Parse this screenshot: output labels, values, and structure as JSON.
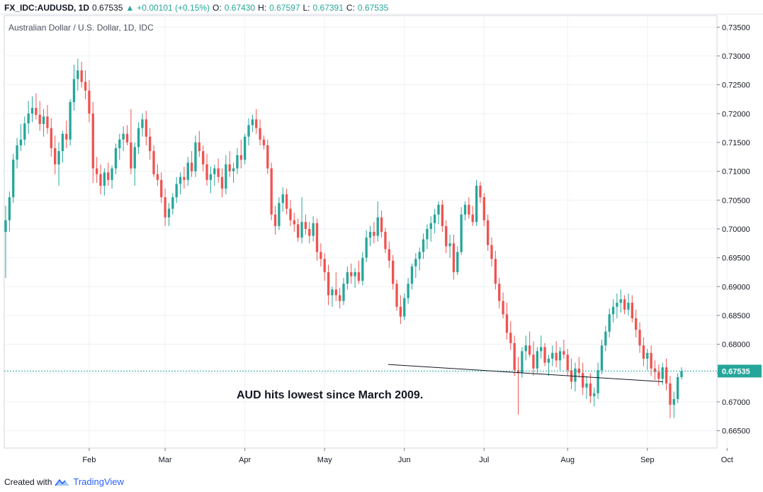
{
  "header": {
    "symbol": "FX_IDC:AUDUSD, 1D",
    "price": "0.67535",
    "change_arrow": "▲",
    "change": "+0.00101 (+0.15%)",
    "o_label": "O:",
    "o_value": "0.67430",
    "h_label": "H:",
    "h_value": "0.67597",
    "l_label": "L:",
    "l_value": "0.67391",
    "c_label": "C:",
    "c_value": "0.67535"
  },
  "footer": {
    "created_with": "Created with",
    "brand": "TradingView",
    "logo_icon": "tradingview-logo-icon"
  },
  "colors": {
    "up": "#26a69a",
    "down": "#ef5350",
    "last_price": "#26a69a",
    "grid": "#eef1f5"
  },
  "chart_data": {
    "type": "candlestick",
    "title": "Australian Dollar / U.S. Dollar, 1D, IDC",
    "ylim": [
      0.662,
      0.737
    ],
    "y_ticks": [
      "0.73500",
      "0.73000",
      "0.72500",
      "0.72000",
      "0.71500",
      "0.71000",
      "0.70500",
      "0.70000",
      "0.69500",
      "0.69000",
      "0.68500",
      "0.68000",
      "0.67500",
      "0.67000",
      "0.66500"
    ],
    "x_ticks": [
      "Feb",
      "Mar",
      "Apr",
      "May",
      "Jun",
      "Jul",
      "Aug",
      "Sep",
      "Oct"
    ],
    "last_price": 0.67535,
    "last_price_label": "0.67535",
    "annotation": "AUD hits lowest since March 2009.",
    "annotation_line": [
      [
        0.6718,
        0.6765
      ],
      [
        0.6718,
        0.6735
      ]
    ],
    "candles": [
      [
        0.6995,
        0.704,
        0.6915,
        0.7015
      ],
      [
        0.7015,
        0.7065,
        0.6995,
        0.7055
      ],
      [
        0.7055,
        0.713,
        0.7045,
        0.712
      ],
      [
        0.712,
        0.7158,
        0.7105,
        0.7145
      ],
      [
        0.7145,
        0.7182,
        0.7135,
        0.7155
      ],
      [
        0.7155,
        0.7195,
        0.7145,
        0.7183
      ],
      [
        0.7183,
        0.7222,
        0.7165,
        0.72
      ],
      [
        0.72,
        0.723,
        0.7185,
        0.721
      ],
      [
        0.721,
        0.7235,
        0.719,
        0.7198
      ],
      [
        0.7198,
        0.7222,
        0.717,
        0.7182
      ],
      [
        0.7182,
        0.7208,
        0.716,
        0.7195
      ],
      [
        0.7195,
        0.7215,
        0.7165,
        0.7175
      ],
      [
        0.7175,
        0.7192,
        0.7125,
        0.714
      ],
      [
        0.714,
        0.7162,
        0.7095,
        0.7112
      ],
      [
        0.7112,
        0.715,
        0.7075,
        0.7135
      ],
      [
        0.7135,
        0.717,
        0.7115,
        0.7165
      ],
      [
        0.7165,
        0.7188,
        0.714,
        0.7155
      ],
      [
        0.7155,
        0.7225,
        0.7145,
        0.722
      ],
      [
        0.722,
        0.7285,
        0.7205,
        0.726
      ],
      [
        0.726,
        0.7295,
        0.724,
        0.7275
      ],
      [
        0.7275,
        0.729,
        0.7245,
        0.7255
      ],
      [
        0.7255,
        0.7275,
        0.7225,
        0.724
      ],
      [
        0.724,
        0.7258,
        0.7185,
        0.72
      ],
      [
        0.72,
        0.722,
        0.708,
        0.7105
      ],
      [
        0.7105,
        0.7125,
        0.708,
        0.7095
      ],
      [
        0.7095,
        0.7112,
        0.706,
        0.7075
      ],
      [
        0.7075,
        0.7105,
        0.7058,
        0.7098
      ],
      [
        0.7098,
        0.7115,
        0.7075,
        0.7085
      ],
      [
        0.7085,
        0.711,
        0.707,
        0.7105
      ],
      [
        0.7105,
        0.7148,
        0.7095,
        0.714
      ],
      [
        0.714,
        0.7165,
        0.712,
        0.7155
      ],
      [
        0.7155,
        0.7178,
        0.7135,
        0.7165
      ],
      [
        0.7165,
        0.718,
        0.7145,
        0.715
      ],
      [
        0.715,
        0.7208,
        0.7095,
        0.7105
      ],
      [
        0.7105,
        0.715,
        0.7075,
        0.7142
      ],
      [
        0.7142,
        0.7185,
        0.713,
        0.7175
      ],
      [
        0.7175,
        0.72,
        0.716,
        0.719
      ],
      [
        0.719,
        0.7205,
        0.7145,
        0.716
      ],
      [
        0.716,
        0.7175,
        0.712,
        0.7135
      ],
      [
        0.7135,
        0.7145,
        0.709,
        0.7095
      ],
      [
        0.7095,
        0.7112,
        0.7075,
        0.7085
      ],
      [
        0.7085,
        0.7098,
        0.7045,
        0.7055
      ],
      [
        0.7055,
        0.707,
        0.7005,
        0.702
      ],
      [
        0.702,
        0.7045,
        0.7005,
        0.7035
      ],
      [
        0.7035,
        0.7062,
        0.7025,
        0.7055
      ],
      [
        0.7055,
        0.709,
        0.7045,
        0.7078
      ],
      [
        0.7078,
        0.7098,
        0.706,
        0.709
      ],
      [
        0.709,
        0.7108,
        0.707,
        0.7085
      ],
      [
        0.7085,
        0.7125,
        0.7075,
        0.7115
      ],
      [
        0.7115,
        0.7135,
        0.709,
        0.71
      ],
      [
        0.71,
        0.7162,
        0.709,
        0.715
      ],
      [
        0.715,
        0.717,
        0.7125,
        0.7135
      ],
      [
        0.7135,
        0.7145,
        0.71,
        0.7112
      ],
      [
        0.7112,
        0.713,
        0.7075,
        0.7085
      ],
      [
        0.7085,
        0.7108,
        0.7062,
        0.7095
      ],
      [
        0.7095,
        0.7112,
        0.7075,
        0.7105
      ],
      [
        0.7105,
        0.7122,
        0.708,
        0.709
      ],
      [
        0.709,
        0.7105,
        0.7055,
        0.707
      ],
      [
        0.707,
        0.7128,
        0.706,
        0.7112
      ],
      [
        0.7112,
        0.7135,
        0.709,
        0.71
      ],
      [
        0.71,
        0.7115,
        0.708,
        0.7105
      ],
      [
        0.7105,
        0.714,
        0.7095,
        0.7128
      ],
      [
        0.7128,
        0.7155,
        0.7105,
        0.712
      ],
      [
        0.712,
        0.7165,
        0.7112,
        0.716
      ],
      [
        0.716,
        0.7192,
        0.7145,
        0.718
      ],
      [
        0.718,
        0.7198,
        0.7168,
        0.719
      ],
      [
        0.719,
        0.7208,
        0.7165,
        0.7175
      ],
      [
        0.7175,
        0.719,
        0.7145,
        0.7155
      ],
      [
        0.7155,
        0.7162,
        0.7138,
        0.7145
      ],
      [
        0.7145,
        0.7155,
        0.7095,
        0.7105
      ],
      [
        0.7105,
        0.7115,
        0.7015,
        0.7025
      ],
      [
        0.7025,
        0.704,
        0.699,
        0.7005
      ],
      [
        0.7005,
        0.7055,
        0.6998,
        0.7045
      ],
      [
        0.7045,
        0.7072,
        0.703,
        0.706
      ],
      [
        0.706,
        0.707,
        0.7025,
        0.7035
      ],
      [
        0.7035,
        0.705,
        0.7005,
        0.7015
      ],
      [
        0.7015,
        0.7028,
        0.6995,
        0.7008
      ],
      [
        0.7008,
        0.7018,
        0.6978,
        0.6985
      ],
      [
        0.6985,
        0.7055,
        0.6975,
        0.7012
      ],
      [
        0.7012,
        0.7025,
        0.699,
        0.7
      ],
      [
        0.7,
        0.7012,
        0.6975,
        0.6988
      ],
      [
        0.6988,
        0.7022,
        0.6978,
        0.701
      ],
      [
        0.701,
        0.7018,
        0.6945,
        0.696
      ],
      [
        0.696,
        0.6975,
        0.6935,
        0.6948
      ],
      [
        0.6948,
        0.6958,
        0.691,
        0.6925
      ],
      [
        0.6925,
        0.6938,
        0.6868,
        0.6885
      ],
      [
        0.6885,
        0.69,
        0.6865,
        0.6895
      ],
      [
        0.6895,
        0.6925,
        0.6875,
        0.6885
      ],
      [
        0.6885,
        0.6898,
        0.6862,
        0.6875
      ],
      [
        0.6875,
        0.6915,
        0.6868,
        0.6905
      ],
      [
        0.6905,
        0.6935,
        0.6895,
        0.6925
      ],
      [
        0.6925,
        0.694,
        0.6905,
        0.6918
      ],
      [
        0.6918,
        0.6932,
        0.6898,
        0.6925
      ],
      [
        0.6925,
        0.6945,
        0.6905,
        0.691
      ],
      [
        0.691,
        0.696,
        0.6902,
        0.695
      ],
      [
        0.695,
        0.6998,
        0.6942,
        0.6985
      ],
      [
        0.6985,
        0.7005,
        0.697,
        0.6995
      ],
      [
        0.6995,
        0.7012,
        0.6975,
        0.6988
      ],
      [
        0.6988,
        0.7048,
        0.6978,
        0.702
      ],
      [
        0.702,
        0.7032,
        0.6985,
        0.6995
      ],
      [
        0.6995,
        0.7002,
        0.6958,
        0.6965
      ],
      [
        0.6965,
        0.6978,
        0.6932,
        0.6945
      ],
      [
        0.6945,
        0.6955,
        0.6895,
        0.6905
      ],
      [
        0.6905,
        0.6912,
        0.6858,
        0.6865
      ],
      [
        0.6865,
        0.6885,
        0.6835,
        0.6848
      ],
      [
        0.6848,
        0.6888,
        0.6842,
        0.688
      ],
      [
        0.688,
        0.6915,
        0.687,
        0.6905
      ],
      [
        0.6905,
        0.694,
        0.6895,
        0.6935
      ],
      [
        0.6935,
        0.6958,
        0.6915,
        0.6948
      ],
      [
        0.6948,
        0.6968,
        0.6928,
        0.696
      ],
      [
        0.696,
        0.6992,
        0.6948,
        0.6982
      ],
      [
        0.6982,
        0.7008,
        0.6965,
        0.7
      ],
      [
        0.7,
        0.7022,
        0.6978,
        0.701
      ],
      [
        0.701,
        0.7035,
        0.6992,
        0.7025
      ],
      [
        0.7025,
        0.7048,
        0.7008,
        0.7042
      ],
      [
        0.7042,
        0.705,
        0.6995,
        0.7005
      ],
      [
        0.7005,
        0.7015,
        0.6958,
        0.697
      ],
      [
        0.697,
        0.699,
        0.695,
        0.6975
      ],
      [
        0.6975,
        0.699,
        0.6912,
        0.6925
      ],
      [
        0.6925,
        0.697,
        0.692,
        0.696
      ],
      [
        0.696,
        0.7038,
        0.6955,
        0.7025
      ],
      [
        0.7025,
        0.7048,
        0.7015,
        0.7042
      ],
      [
        0.7042,
        0.7055,
        0.7018,
        0.7025
      ],
      [
        0.7025,
        0.704,
        0.7005,
        0.7012
      ],
      [
        0.7012,
        0.7085,
        0.7005,
        0.7075
      ],
      [
        0.7075,
        0.7082,
        0.7045,
        0.7055
      ],
      [
        0.7055,
        0.7062,
        0.7005,
        0.7015
      ],
      [
        0.7015,
        0.7025,
        0.6962,
        0.6972
      ],
      [
        0.6972,
        0.6985,
        0.6935,
        0.6948
      ],
      [
        0.6948,
        0.6962,
        0.6895,
        0.6905
      ],
      [
        0.6905,
        0.6915,
        0.6862,
        0.6875
      ],
      [
        0.6875,
        0.689,
        0.6845,
        0.6852
      ],
      [
        0.6852,
        0.6872,
        0.6808,
        0.682
      ],
      [
        0.682,
        0.684,
        0.679,
        0.6802
      ],
      [
        0.6802,
        0.6815,
        0.6745,
        0.6755
      ],
      [
        0.6755,
        0.6778,
        0.6678,
        0.675
      ],
      [
        0.675,
        0.6795,
        0.6742,
        0.6788
      ],
      [
        0.6788,
        0.6815,
        0.6772,
        0.6798
      ],
      [
        0.6798,
        0.6822,
        0.6778,
        0.6782
      ],
      [
        0.6782,
        0.6805,
        0.6745,
        0.6758
      ],
      [
        0.6758,
        0.6795,
        0.675,
        0.6788
      ],
      [
        0.6788,
        0.6815,
        0.6775,
        0.6795
      ],
      [
        0.6795,
        0.6802,
        0.6762,
        0.6768
      ],
      [
        0.6768,
        0.6782,
        0.6745,
        0.6775
      ],
      [
        0.6775,
        0.6798,
        0.6762,
        0.6785
      ],
      [
        0.6785,
        0.6805,
        0.676,
        0.6772
      ],
      [
        0.6772,
        0.6795,
        0.6755,
        0.6788
      ],
      [
        0.6788,
        0.6808,
        0.6775,
        0.6782
      ],
      [
        0.6782,
        0.6792,
        0.6745,
        0.6755
      ],
      [
        0.6755,
        0.6775,
        0.6722,
        0.6735
      ],
      [
        0.6735,
        0.6768,
        0.6718,
        0.6758
      ],
      [
        0.6758,
        0.6778,
        0.6742,
        0.675
      ],
      [
        0.675,
        0.6768,
        0.6712,
        0.6725
      ],
      [
        0.6725,
        0.6745,
        0.6705,
        0.6732
      ],
      [
        0.6732,
        0.675,
        0.6698,
        0.671
      ],
      [
        0.671,
        0.6725,
        0.6692,
        0.6715
      ],
      [
        0.6715,
        0.6768,
        0.6705,
        0.6755
      ],
      [
        0.6755,
        0.6808,
        0.6748,
        0.6798
      ],
      [
        0.6798,
        0.6832,
        0.6788,
        0.6822
      ],
      [
        0.6822,
        0.6862,
        0.6812,
        0.6852
      ],
      [
        0.6852,
        0.6878,
        0.6838,
        0.6865
      ],
      [
        0.6865,
        0.6888,
        0.6845,
        0.6872
      ],
      [
        0.6872,
        0.6895,
        0.6855,
        0.6878
      ],
      [
        0.6878,
        0.6885,
        0.6852,
        0.686
      ],
      [
        0.686,
        0.6888,
        0.685,
        0.6872
      ],
      [
        0.6872,
        0.6885,
        0.6838,
        0.6845
      ],
      [
        0.6845,
        0.686,
        0.6812,
        0.6825
      ],
      [
        0.6825,
        0.6838,
        0.6785,
        0.6798
      ],
      [
        0.6798,
        0.6812,
        0.6762,
        0.6775
      ],
      [
        0.6775,
        0.6792,
        0.6755,
        0.6785
      ],
      [
        0.6785,
        0.6798,
        0.6745,
        0.6758
      ],
      [
        0.6758,
        0.6772,
        0.6738,
        0.6752
      ],
      [
        0.6752,
        0.6765,
        0.6728,
        0.674
      ],
      [
        0.674,
        0.6768,
        0.673,
        0.676
      ],
      [
        0.676,
        0.6775,
        0.672,
        0.6732
      ],
      [
        0.6732,
        0.6745,
        0.6672,
        0.6695
      ],
      [
        0.6695,
        0.6718,
        0.6672,
        0.6705
      ],
      [
        0.6705,
        0.675,
        0.6698,
        0.6743
      ],
      [
        0.6743,
        0.676,
        0.6739,
        0.67535
      ]
    ]
  }
}
